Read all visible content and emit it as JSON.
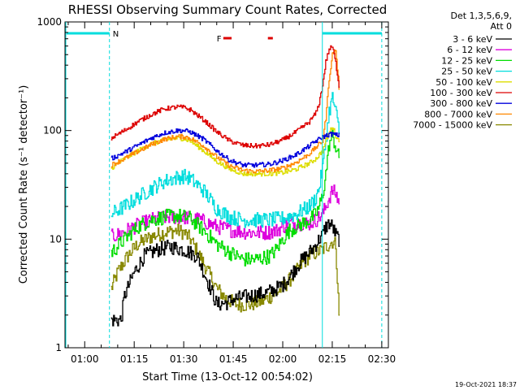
{
  "chart_data": {
    "type": "line",
    "title": "RHESSI Observing Summary Count Rates, Corrected",
    "xlabel": "Start Time (13-Oct-12 00:54:02)",
    "ylabel": "Corrected Count Rate (s⁻¹ detector⁻¹)",
    "y_scale": "log",
    "ylim": [
      1,
      1000
    ],
    "xlim_minutes": [
      54.033,
      152.0
    ],
    "x_ticks": [
      {
        "label": "01:00",
        "minute": 60
      },
      {
        "label": "01:15",
        "minute": 75
      },
      {
        "label": "01:30",
        "minute": 90
      },
      {
        "label": "01:45",
        "minute": 105
      },
      {
        "label": "02:00",
        "minute": 120
      },
      {
        "label": "02:15",
        "minute": 135
      },
      {
        "label": "02:30",
        "minute": 150
      }
    ],
    "y_ticks": [
      {
        "label": "1",
        "value": 1
      },
      {
        "label": "10",
        "value": 10
      },
      {
        "label": "100",
        "value": 100
      },
      {
        "label": "1000",
        "value": 1000
      }
    ],
    "legend": {
      "header": [
        "Det 1,3,5,6,9,",
        "Att 0"
      ],
      "placement": "right"
    },
    "series": [
      {
        "name": "3 - 6 keV",
        "color": "#000000",
        "x": [
          68,
          71,
          72,
          75,
          78,
          82,
          86,
          90,
          94,
          96,
          100,
          103,
          105,
          110,
          115,
          118,
          120,
          122,
          124,
          126,
          128,
          129.5,
          131,
          132,
          132.5,
          133,
          134,
          135,
          136,
          137
        ],
        "y": [
          1.8,
          1.8,
          3.0,
          5.0,
          7.0,
          8.0,
          8.5,
          8.0,
          7.0,
          5.0,
          2.5,
          2.6,
          2.8,
          3.0,
          3.2,
          3.5,
          3.8,
          4.5,
          5.5,
          6.5,
          7.5,
          8.5,
          10,
          11,
          12,
          13,
          14,
          13,
          11,
          10
        ]
      },
      {
        "name": "6 - 12 keV",
        "color": "#dd00dd",
        "x": [
          68,
          70,
          75,
          80,
          85,
          90,
          95,
          100,
          105,
          110,
          115,
          118,
          120,
          122,
          124,
          126,
          128,
          130,
          132,
          133,
          134,
          135,
          136,
          137
        ],
        "y": [
          10.5,
          11,
          13,
          15,
          16,
          16,
          15,
          13,
          12,
          11.5,
          11.5,
          12,
          13,
          14,
          14,
          14,
          14,
          15,
          17,
          20,
          24,
          28,
          26,
          22
        ]
      },
      {
        "name": "12 - 25 keV",
        "color": "#00dd00",
        "x": [
          68,
          72,
          76,
          80,
          84,
          88,
          92,
          96,
          100,
          104,
          108,
          112,
          116,
          118,
          120,
          122,
          124,
          126,
          128,
          130,
          131,
          132,
          133,
          133.5,
          134,
          135,
          136,
          137
        ],
        "y": [
          7.5,
          10,
          13,
          15,
          16,
          16.5,
          15.5,
          12,
          9,
          7.5,
          6.5,
          6.5,
          7,
          8,
          10,
          12,
          13,
          14,
          15,
          17,
          20,
          25,
          40,
          55,
          75,
          90,
          70,
          55
        ]
      },
      {
        "name": "25 - 50 keV",
        "color": "#00dddd",
        "x": [
          68,
          72,
          76,
          80,
          84,
          88,
          90,
          92,
          96,
          100,
          104,
          108,
          112,
          116,
          120,
          124,
          128,
          130,
          131,
          132,
          133,
          134,
          135,
          136,
          137
        ],
        "y": [
          17,
          20,
          24,
          29,
          34,
          37,
          38,
          36,
          28,
          19,
          16,
          15,
          15,
          15,
          15.5,
          17,
          20,
          24,
          30,
          45,
          80,
          150,
          200,
          150,
          100
        ]
      },
      {
        "name": "50 - 100 keV",
        "color": "#dddd00",
        "x": [
          68,
          72,
          76,
          80,
          84,
          88,
          90,
          92,
          96,
          100,
          104,
          108,
          112,
          116,
          120,
          124,
          128,
          130,
          132,
          133,
          134,
          135,
          136,
          137
        ],
        "y": [
          45,
          55,
          65,
          75,
          82,
          85,
          84,
          80,
          65,
          52,
          44,
          40,
          40,
          40,
          41,
          44,
          50,
          55,
          65,
          80,
          95,
          110,
          90,
          80
        ]
      },
      {
        "name": "100 - 300 keV",
        "color": "#dd0000",
        "x": [
          68,
          72,
          76,
          80,
          84,
          88,
          90,
          92,
          96,
          100,
          104,
          108,
          112,
          116,
          120,
          124,
          128,
          130,
          131,
          132,
          133,
          134,
          135,
          136,
          137
        ],
        "y": [
          85,
          100,
          120,
          140,
          158,
          165,
          163,
          155,
          125,
          97,
          80,
          73,
          72,
          74,
          82,
          97,
          120,
          145,
          180,
          260,
          430,
          560,
          590,
          420,
          260
        ]
      },
      {
        "name": "300 - 800 keV",
        "color": "#0000dd",
        "x": [
          68,
          72,
          76,
          80,
          84,
          88,
          90,
          92,
          96,
          100,
          104,
          108,
          112,
          116,
          120,
          124,
          128,
          130,
          132,
          134,
          135,
          136,
          137
        ],
        "y": [
          55,
          63,
          73,
          85,
          95,
          100,
          100,
          97,
          83,
          65,
          53,
          48,
          48,
          49,
          53,
          60,
          72,
          80,
          87,
          92,
          93,
          91,
          90
        ]
      },
      {
        "name": "800 - 7000 keV",
        "color": "#ff8800",
        "x": [
          68,
          72,
          76,
          80,
          84,
          88,
          90,
          92,
          96,
          100,
          104,
          108,
          112,
          116,
          120,
          124,
          128,
          130,
          132,
          133,
          134,
          135,
          136,
          137
        ],
        "y": [
          48,
          55,
          64,
          74,
          83,
          88,
          88,
          85,
          72,
          57,
          47,
          43,
          42,
          43,
          45,
          51,
          61,
          70,
          80,
          130,
          300,
          500,
          550,
          250
        ]
      },
      {
        "name": "7000 - 15000 keV",
        "color": "#888800",
        "x": [
          68,
          70,
          73,
          76,
          80,
          84,
          88,
          90,
          92,
          96,
          100,
          103,
          106,
          110,
          114,
          118,
          120,
          122,
          124,
          126,
          128,
          130,
          132,
          133,
          134,
          135,
          136,
          137
        ],
        "y": [
          3.5,
          5,
          7,
          9,
          10.5,
          11.5,
          12,
          11.5,
          10,
          6,
          3.5,
          2.8,
          2.5,
          2.5,
          2.7,
          3.2,
          3.6,
          4.2,
          5,
          6,
          7,
          7.5,
          8,
          8.5,
          9,
          9.5,
          9,
          2
        ]
      }
    ],
    "intervals": [
      {
        "label": "N",
        "color": "#00dddd",
        "spans": [
          [
            54.5,
            67.5
          ],
          [
            132.0,
            150.0
          ]
        ]
      },
      {
        "label": "F",
        "color": "#dd0000",
        "spans": [
          [
            102.0,
            104.5
          ],
          [
            115.5,
            117.0
          ]
        ]
      }
    ],
    "intervals_label_x_minute": {
      "N": 68.5,
      "F": 100.0
    },
    "grid": false
  },
  "footer": {
    "timestamp": "19-Oct-2021 18:37"
  }
}
